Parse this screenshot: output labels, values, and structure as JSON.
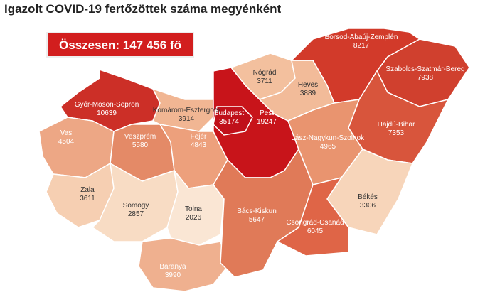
{
  "title": "Igazolt COVID-19 fertőzöttek száma megyénként",
  "total": "Összesen: 147 456 fő",
  "counties": [
    {
      "name": "Győr-Moson-Sopron",
      "value": 10639,
      "color": "#cc2f27"
    },
    {
      "name": "Komárom-Esztergom",
      "value": 3914,
      "color": "#f1b693"
    },
    {
      "name": "Vas",
      "value": 4504,
      "color": "#eda785"
    },
    {
      "name": "Veszprém",
      "value": 5580,
      "color": "#e48a67"
    },
    {
      "name": "Fejér",
      "value": 4843,
      "color": "#eda07c"
    },
    {
      "name": "Zala",
      "value": 3611,
      "color": "#f6cfb2"
    },
    {
      "name": "Somogy",
      "value": 2857,
      "color": "#f8dcc4"
    },
    {
      "name": "Tolna",
      "value": 2026,
      "color": "#fae6d4"
    },
    {
      "name": "Baranya",
      "value": 3990,
      "color": "#efb08f"
    },
    {
      "name": "Pest",
      "value": 19247,
      "color": "#c8141a"
    },
    {
      "name": "Budapest",
      "value": 35174,
      "color": "#c0101a"
    },
    {
      "name": "Nógrád",
      "value": 3711,
      "color": "#f3c09e"
    },
    {
      "name": "Heves",
      "value": 3889,
      "color": "#f2bb99"
    },
    {
      "name": "Borsod-Abaúj-Zemplén",
      "value": 8217,
      "color": "#d23a2a"
    },
    {
      "name": "Szabolcs-Szatmár-Bereg",
      "value": 7938,
      "color": "#d0402e"
    },
    {
      "name": "Hajdú-Bihar",
      "value": 7353,
      "color": "#d8553c"
    },
    {
      "name": "Jász-Nagykun-Szolnok",
      "value": 4965,
      "color": "#e9946f"
    },
    {
      "name": "Békés",
      "value": 3306,
      "color": "#f7d5ba"
    },
    {
      "name": "Bács-Kiskun",
      "value": 5647,
      "color": "#e07a58"
    },
    {
      "name": "Csongrád-Csanád",
      "value": 6045,
      "color": "#df6547"
    }
  ]
}
